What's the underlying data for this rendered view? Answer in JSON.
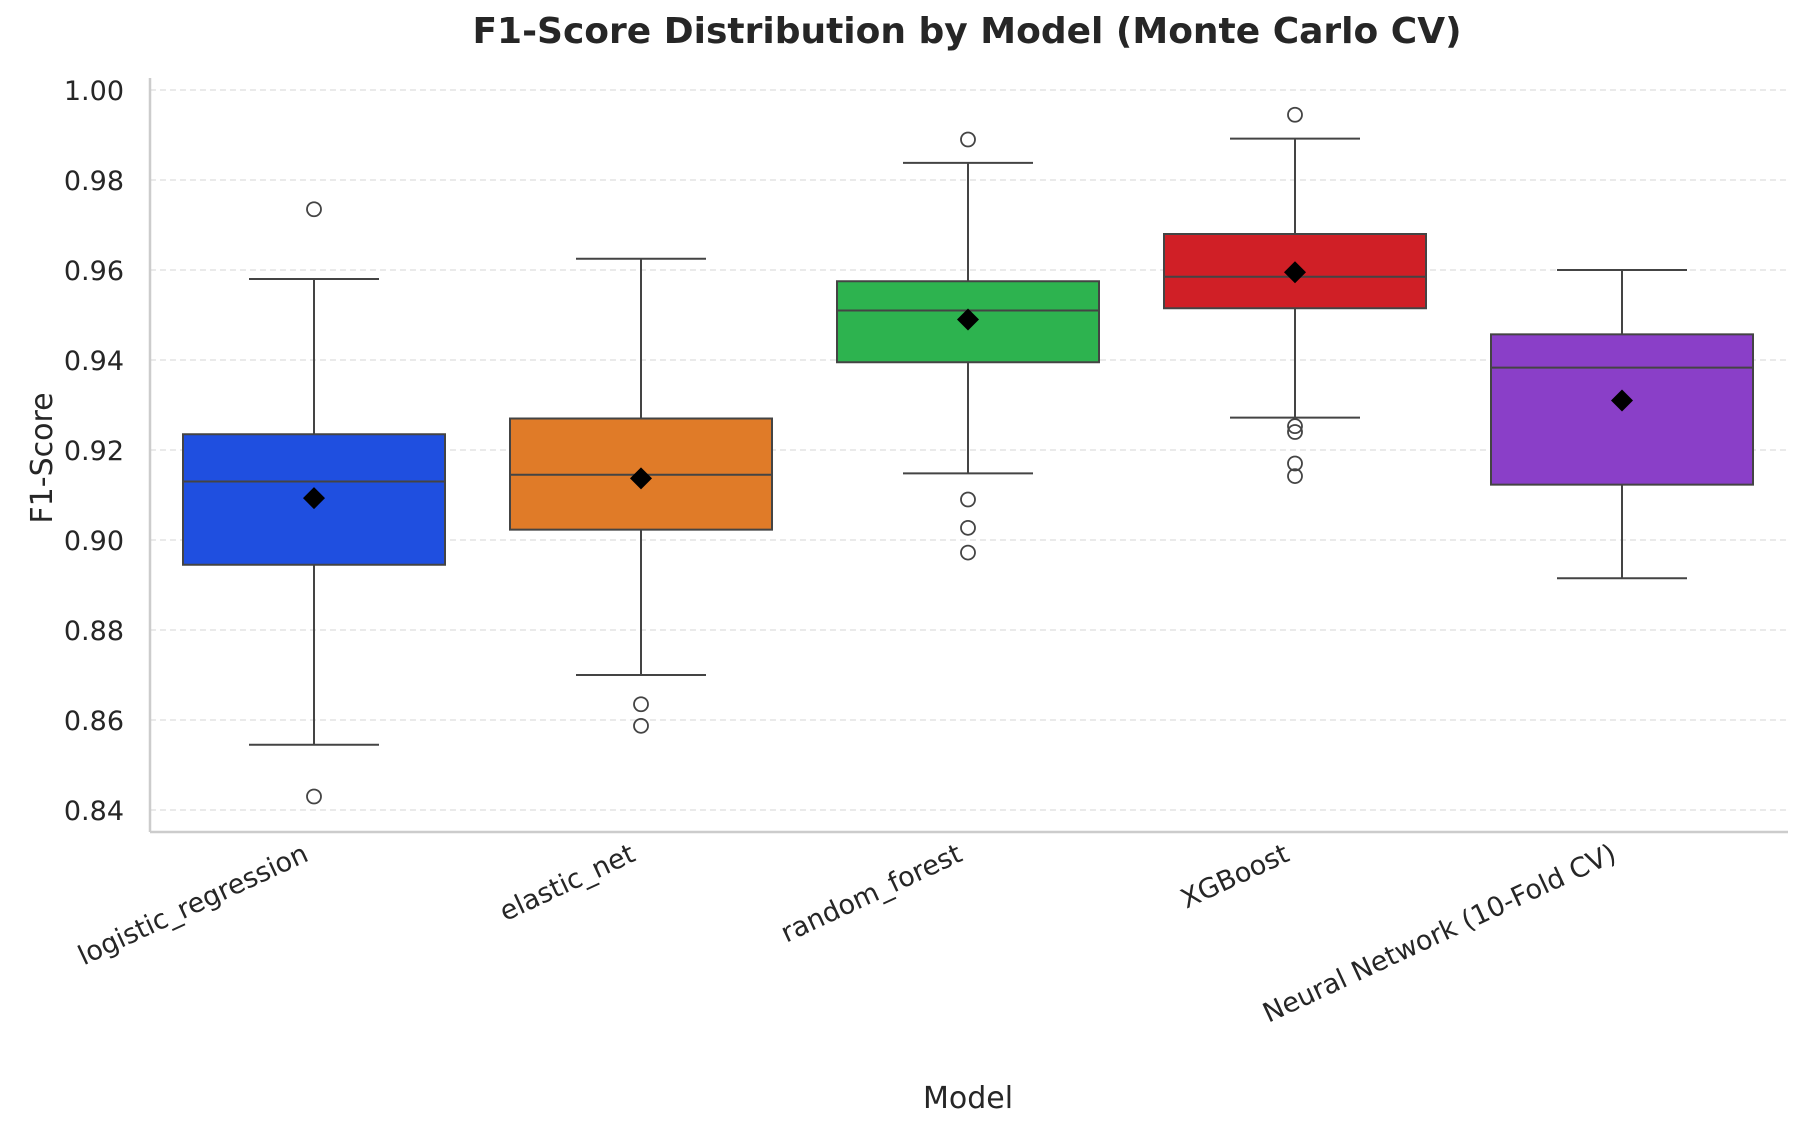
{
  "chart_data": {
    "type": "box",
    "title": "F1-Score Distribution by Model (Monte Carlo CV)",
    "xlabel": "Model",
    "ylabel": "F1-Score",
    "ylim": [
      0.835,
      1.002
    ],
    "yticks": [
      0.84,
      0.86,
      0.88,
      0.9,
      0.92,
      0.94,
      0.96,
      0.98,
      1.0
    ],
    "ytick_labels": [
      "0.84",
      "0.86",
      "0.88",
      "0.90",
      "0.92",
      "0.94",
      "0.96",
      "0.98",
      "1.00"
    ],
    "grid": true,
    "categories": [
      "logistic_regression",
      "elastic_net",
      "random_forest",
      "XGBoost",
      "Neural Network (10-Fold CV)"
    ],
    "boxes": [
      {
        "category": "logistic_regression",
        "color": "#1f4fe0",
        "whisker_low": 0.8545,
        "q1": 0.8945,
        "median": 0.913,
        "q3": 0.9235,
        "whisker_high": 0.958,
        "mean": 0.9093,
        "outliers": [
          0.9735,
          0.843
        ]
      },
      {
        "category": "elastic_net",
        "color": "#e07b28",
        "whisker_low": 0.87,
        "q1": 0.9023,
        "median": 0.9145,
        "q3": 0.927,
        "whisker_high": 0.9625,
        "mean": 0.9137,
        "outliers": [
          0.8635,
          0.8587
        ]
      },
      {
        "category": "random_forest",
        "color": "#2db34f",
        "whisker_low": 0.9148,
        "q1": 0.9395,
        "median": 0.951,
        "q3": 0.9575,
        "whisker_high": 0.9838,
        "mean": 0.949,
        "outliers": [
          0.989,
          0.909,
          0.9027,
          0.8972
        ]
      },
      {
        "category": "XGBoost",
        "color": "#d01f26",
        "whisker_low": 0.9272,
        "q1": 0.9515,
        "median": 0.9585,
        "q3": 0.968,
        "whisker_high": 0.9892,
        "mean": 0.9595,
        "outliers": [
          0.9945,
          0.9253,
          0.924,
          0.917,
          0.9142
        ]
      },
      {
        "category": "Neural Network (10-Fold CV)",
        "color": "#8a3fc8",
        "whisker_low": 0.8915,
        "q1": 0.9123,
        "median": 0.9383,
        "q3": 0.9457,
        "whisker_high": 0.96,
        "mean": 0.931,
        "outliers": []
      }
    ]
  }
}
